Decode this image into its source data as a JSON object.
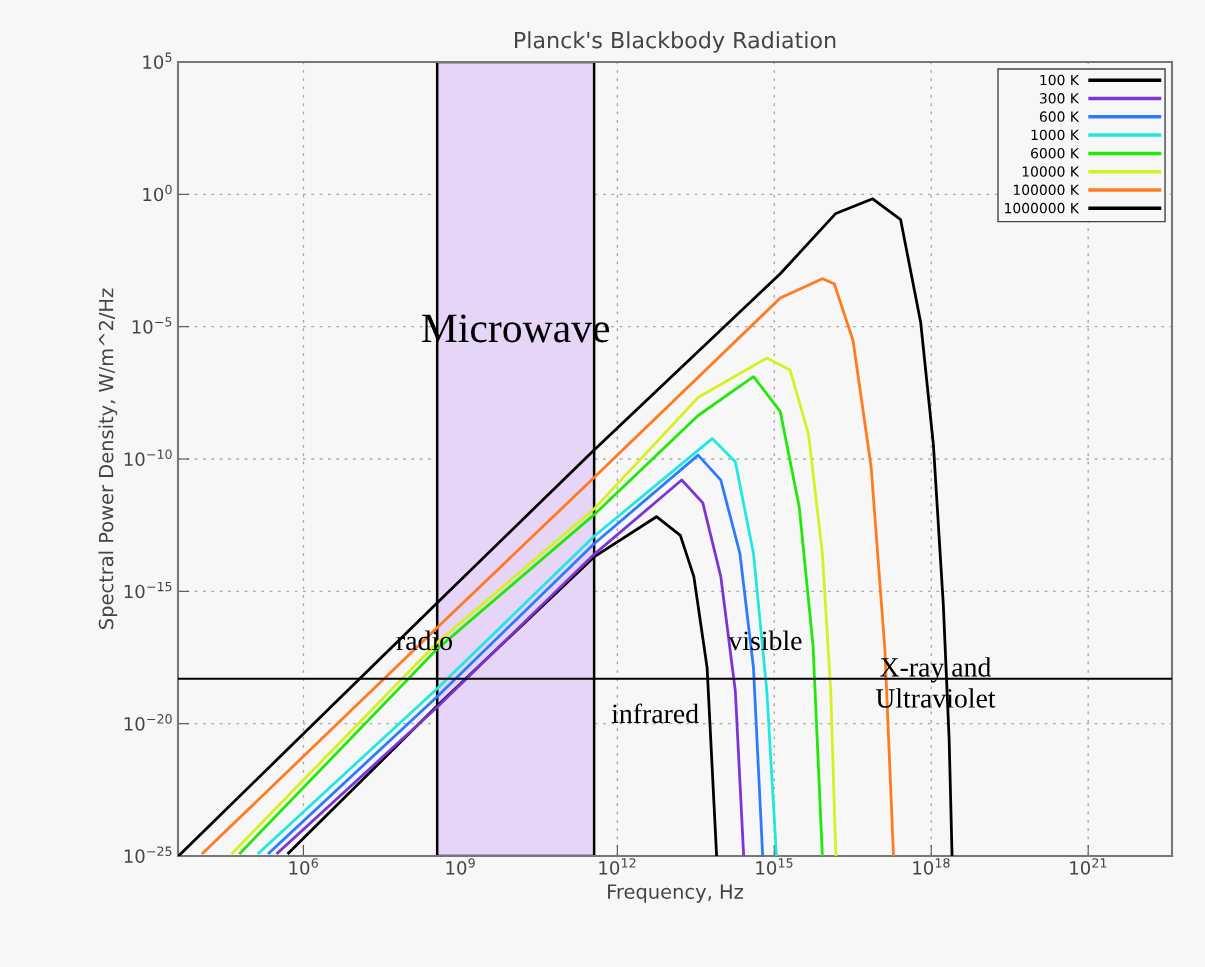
{
  "chart_data": {
    "type": "line",
    "title": "Planck's Blackbody Radiation",
    "xlabel": "Frequency, Hz",
    "ylabel": "Spectral Power Density, W/m^2/Hz",
    "log": "xy",
    "grid": true,
    "legend": "top right",
    "line_style": "solid",
    "marker": "none",
    "xlim": [
      4000,
      4e+22
    ],
    "ylim": [
      1e-25,
      100000.0
    ],
    "xticks": [
      {
        "value": 1000000.0,
        "label": "10$^{6}$"
      },
      {
        "value": 1000000000.0,
        "label": "10$^{9}$"
      },
      {
        "value": 1000000000000.0,
        "label": "10$^{12}$"
      },
      {
        "value": 1000000000000000.0,
        "label": "10$^{15}$"
      },
      {
        "value": 1e+18,
        "label": "10$^{18}$"
      },
      {
        "value": 1e+21,
        "label": "10$^{21}$"
      }
    ],
    "yticks": [
      {
        "value": 1e-25,
        "label": "10$^{−25}$"
      },
      {
        "value": 1e-20,
        "label": "10$^{−20}$"
      },
      {
        "value": 1e-15,
        "label": "10$^{−15}$"
      },
      {
        "value": 1e-10,
        "label": "10$^{−10}$"
      },
      {
        "value": 1e-05,
        "label": "10$^{−5}$"
      },
      {
        "value": 1,
        "label": "10$^{0}$"
      },
      {
        "value": 100000.0,
        "label": "10$^{5}$"
      }
    ],
    "series": [
      {
        "name": "100 K",
        "color": "#000000",
        "x": [
          520000.0,
          350000000.0,
          360000000000.0,
          5600000000000.0,
          16000000000000.0,
          29000000000000.0,
          52000000000000.0,
          79000000000000.0
        ],
        "values": [
          1.3e-25,
          4.5e-20,
          2e-14,
          6.6e-13,
          1.3e-13,
          3.6e-15,
          1.3e-18,
          1e-25
        ]
      },
      {
        "name": "300 K",
        "color": "#7b35d4",
        "x": [
          320000.0,
          350000000.0,
          360000000000.0,
          17000000000000.0,
          43000000000000.0,
          95000000000000.0,
          180000000000000.0,
          260000000000000.0
        ],
        "values": [
          1.3e-25,
          4e-20,
          2.5e-14,
          1.6e-11,
          2.2e-12,
          3.6e-15,
          1.7e-19,
          1e-25
        ]
      },
      {
        "name": "600 K",
        "color": "#2a7bff",
        "x": [
          220000.0,
          350000000.0,
          360000000000.0,
          35000000000000.0,
          95000000000000.0,
          220000000000000.0,
          400000000000000.0,
          600000000000000.0
        ],
        "values": [
          1.3e-25,
          1e-19,
          6.3e-14,
          1.4e-10,
          1.6e-11,
          2.7e-14,
          1.3e-18,
          1e-25
        ]
      },
      {
        "name": "1000 K",
        "color": "#20e8e0",
        "x": [
          140000.0,
          350000000.0,
          360000000000.0,
          65000000000000.0,
          180000000000000.0,
          400000000000000.0,
          720000000000000.0,
          1100000000000000.0
        ],
        "values": [
          1.3e-25,
          2e-19,
          1.2e-13,
          5.9e-10,
          7.9e-11,
          2.7e-14,
          1.7e-19,
          1e-25
        ]
      },
      {
        "name": "6000 K",
        "color": "#22e80a",
        "x": [
          62000.0,
          350000000.0,
          360000000000.0,
          35000000000000.0,
          400000000000000.0,
          1300000000000000.0,
          3000000000000000.0,
          5500000000000000.0,
          8300000000000000.0
        ],
        "values": [
          1.3e-25,
          6.3e-18,
          7.9e-13,
          4.4e-09,
          1.3e-07,
          6.3e-09,
          1.5e-12,
          9.1e-18,
          1e-25
        ]
      },
      {
        "name": "10000 K",
        "color": "#d6f020",
        "x": [
          44000.0,
          350000000.0,
          360000000000.0,
          35000000000000.0,
          720000000000000.0,
          2000000000000000.0,
          4500000000000000.0,
          8300000000000000.0,
          1.2e+16,
          1.5e+16
        ],
        "values": [
          1.3e-25,
          1.1e-17,
          1.3e-12,
          2.1e-08,
          6.5e-07,
          2.3e-07,
          8.9e-10,
          2.7e-14,
          1.7e-19,
          1e-25
        ]
      },
      {
        "name": "100000 K",
        "color": "#ff7a20",
        "x": [
          12000.0,
          350000000.0,
          360000000000.0,
          1300000000000000.0,
          8300000000000000.0,
          1.4e+16,
          3.2e+16,
          7.1e+16,
          1.3e+17,
          1.9e+17
        ],
        "values": [
          1.3e-25,
          4e-17,
          2e-11,
          0.00012,
          0.00065,
          0.00042,
          3e-06,
          5e-11,
          6.3e-18,
          1e-25
        ]
      },
      {
        "name": "1000000 K",
        "color": "#000000",
        "x": [
          4100,
          350000000.0,
          360000000000.0,
          1300000000000000.0,
          1.5e+16,
          7.6e+16,
          2.6e+17,
          6.3e+17,
          1.1e+18,
          1.7e+18,
          2.2e+18,
          2.5e+18
        ],
        "values": [
          1e-25,
          3.5e-16,
          2.2e-10,
          0.001,
          0.19,
          0.68,
          0.11,
          1.4e-05,
          3.4e-10,
          3.2e-16,
          2.5e-21,
          1e-25
        ]
      }
    ],
    "bands": [
      {
        "axis": "x",
        "from": 360000000.0,
        "to": 360000000000.0,
        "label": "Microwave",
        "color": "#e6d5f7"
      }
    ],
    "ref_lines": [
      {
        "axis": "y",
        "value": 5e-19,
        "label": null,
        "color": "#000000",
        "line_style": "solid"
      }
    ],
    "annotations": [
      "radio",
      "infrared",
      "visible",
      "X-ray and\nUltraviolet"
    ]
  }
}
